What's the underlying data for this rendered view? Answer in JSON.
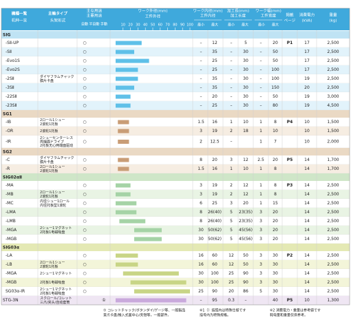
{
  "header": {
    "model": [
      "機種一覧",
      "机种一览"
    ],
    "spindle": [
      "主軸タイプ",
      "头架形式"
    ],
    "use": {
      "title": [
        "主な用途",
        "主要用途"
      ],
      "cols": [
        "自動",
        "半自動",
        "手動"
      ]
    },
    "outer": {
      "title": "ワーク外径(mm)",
      "sub": "工件外径",
      "xlim": [
        0,
        100
      ],
      "xticks": [
        10,
        20,
        30,
        40,
        50,
        60,
        70,
        80,
        90,
        100
      ]
    },
    "inner": {
      "title": [
        "ワーク内径(mm)",
        "工件内径"
      ],
      "min": "最小",
      "max": "最大"
    },
    "length": {
      "title": [
        "加工長(mm)",
        "加工长度"
      ],
      "min": "最小",
      "max": "最大"
    },
    "width": {
      "title": [
        "ワーク幅(mm)",
        "工件宽度"
      ],
      "min": "最小",
      "max": "最大"
    },
    "page": [
      "掲載",
      "ページ"
    ],
    "power": [
      "消費電力",
      "(kVA)"
    ],
    "weight": [
      "重量",
      "(kg)"
    ]
  },
  "sections": [
    {
      "name": "SIG",
      "head_color": "#bfe3f4",
      "row_color": "#e2f3fb",
      "bar_color": "#5fc0e8",
      "rows": [
        {
          "model": "-SⅡ-UP",
          "use": [
            "○",
            null,
            null
          ],
          "outer": [
            0,
            35
          ],
          "cells": [
            "–",
            "12",
            "–",
            "5",
            "–",
            "20"
          ],
          "page": "P1",
          "power": "17",
          "weight": "2,500"
        },
        {
          "model": "-SⅡ",
          "use": [
            "○",
            null,
            null
          ],
          "outer": [
            0,
            25
          ],
          "cells": [
            "–",
            "35",
            "–",
            "30",
            "–",
            "50"
          ],
          "power": "17",
          "weight": "2,500"
        },
        {
          "model": "-Evo1S",
          "use": [
            "○",
            null,
            null
          ],
          "outer": [
            0,
            45
          ],
          "cells": [
            "–",
            "25",
            "–",
            "30",
            "–",
            "50"
          ],
          "power": "17",
          "weight": "2,500"
        },
        {
          "model": "-Evo2S",
          "use": [
            "○",
            null,
            null
          ],
          "outer": [
            0,
            30
          ],
          "cells": [
            "–",
            "25",
            "–",
            "30",
            "–",
            "100"
          ],
          "power": "17",
          "weight": "2,500"
        },
        {
          "model": "-2SⅡ",
          "spindle": [
            "ダイヤフラムチャック",
            "膜片卡盘"
          ],
          "use": [
            "○",
            null,
            null
          ],
          "outer": [
            0,
            30
          ],
          "cells": [
            "–",
            "35",
            "–",
            "30",
            "–",
            "100"
          ],
          "power": "19",
          "weight": "2,500"
        },
        {
          "model": "-3SⅡ",
          "use": [
            "○",
            null,
            null
          ],
          "outer": [
            0,
            25
          ],
          "cells": [
            "–",
            "35",
            "–",
            "30",
            "–",
            "150"
          ],
          "power": "20",
          "weight": "2,500"
        },
        {
          "model": "-22SⅡ",
          "use": [
            "○",
            null,
            null
          ],
          "outer": [
            0,
            20
          ],
          "cells": [
            "–",
            "20",
            "–",
            "30",
            "–",
            "50"
          ],
          "power": "19",
          "weight": "3,000"
        },
        {
          "model": "-23SⅡ",
          "use": [
            "○",
            null,
            null
          ],
          "outer": [
            0,
            20
          ],
          "cells": [
            "–",
            "25",
            "–",
            "30",
            "–",
            "80"
          ],
          "power": "19",
          "weight": "4,500"
        }
      ]
    },
    {
      "name": "SG1",
      "head_color": "#ead9c4",
      "row_color": "#f6ede2",
      "bar_color": "#c99d76",
      "rows": [
        {
          "model": "-IB",
          "spindle": [
            "2ロール1シュー",
            "2滚轮1托板"
          ],
          "use": [
            "○",
            null,
            null
          ],
          "outer": [
            3,
            18
          ],
          "cells": [
            "1.5",
            "16",
            "1",
            "10",
            "1",
            "8"
          ],
          "page": "P4",
          "power": "10",
          "weight": "1,500"
        },
        {
          "model": "-OR",
          "spindle": [
            "2滚轮1托板"
          ],
          "use": [
            "○",
            null,
            null
          ],
          "outer": [
            3,
            18
          ],
          "cells": [
            "3",
            "19",
            "2",
            "18",
            "1",
            "10"
          ],
          "power": "10",
          "weight": "1,500"
        },
        {
          "model": "-IR",
          "spindle": [
            "2シューセンターレス",
            "両端面ドライブ",
            "2托板无心两端面驱动"
          ],
          "use": [
            "○",
            null,
            null
          ],
          "outer": [
            3,
            18
          ],
          "cells": [
            "2",
            "12.5",
            "–",
            null,
            "1",
            "7"
          ],
          "power": "10",
          "weight": "2,000"
        }
      ]
    },
    {
      "name": "SG2",
      "head_color": "#ead9c4",
      "row_color": "#f6ede2",
      "bar_color": "#c99d76",
      "rows": [
        {
          "model": "-C",
          "spindle": [
            "ダイヤフラムチャック",
            "膜片卡盘"
          ],
          "use": [
            "○",
            null,
            null
          ],
          "outer": [
            3,
            18
          ],
          "cells": [
            "8",
            "20",
            "3",
            "12",
            "2.5",
            "20"
          ],
          "page": "P5",
          "power": "14",
          "weight": "1,700"
        },
        {
          "model": "-R",
          "spindle": [
            "2ロール1シュー",
            "2滚轮1托板"
          ],
          "use": [
            "○",
            null,
            null
          ],
          "outer": [
            3,
            18
          ],
          "cells": [
            "1.5",
            "16",
            "1",
            "10",
            "1",
            "8"
          ],
          "power": "14",
          "weight": "1,700"
        }
      ]
    },
    {
      "name": "SIG02αⅡ",
      "head_color": "#cfe6c8",
      "row_color": "#e9f4e4",
      "bar_color": "#a5d3a6",
      "rows": [
        {
          "model": "-MA",
          "use": [
            "○",
            null,
            null
          ],
          "outer": [
            0,
            20
          ],
          "cells": [
            "3",
            "19",
            "2",
            "12",
            "1",
            "8"
          ],
          "page": "P3",
          "power": "14",
          "weight": "2,500"
        },
        {
          "model": "-MB",
          "spindle": [
            "2ロール1シュー",
            "2滚轮1托板"
          ],
          "use": [
            "○",
            null,
            null
          ],
          "outer": [
            0,
            20
          ],
          "cells": [
            "3",
            "19",
            "2",
            "12",
            "1",
            "8"
          ],
          "power": "14",
          "weight": "2,500"
        },
        {
          "model": "-MC",
          "spindle": [
            "内径シュー1ロール",
            "内径托板型1滚轮"
          ],
          "use": [
            "○",
            null,
            null
          ],
          "outer": [
            0,
            28
          ],
          "cells": [
            "6",
            "25",
            "3",
            "20",
            "1",
            "15"
          ],
          "power": "14",
          "weight": "2,500"
        },
        {
          "model": "-LMA",
          "use": [
            "○",
            null,
            null
          ],
          "outer": [
            0,
            28
          ],
          "cells": [
            "8",
            "26(40)",
            "5",
            "23(35)",
            "3",
            "20"
          ],
          "power": "14",
          "weight": "2,500"
        },
        {
          "model": "-LMB",
          "use": [
            "○",
            null,
            null
          ],
          "outer": [
            5,
            40
          ],
          "cells": [
            "8",
            "26(40)",
            "5",
            "23(35)",
            "3",
            "20"
          ],
          "power": "14",
          "weight": "2,500"
        },
        {
          "model": "-MGA",
          "spindle": [
            "2シュー1マグネット",
            "2托板1电磁吸盘"
          ],
          "use": [
            "○",
            null,
            null
          ],
          "outer": [
            25,
            62
          ],
          "cells": [
            "30",
            "50(62)",
            "5",
            "45(56)",
            "3",
            "20"
          ],
          "power": "14",
          "weight": "2,500"
        },
        {
          "model": "-MGB",
          "use": [
            "○",
            null,
            null
          ],
          "outer": [
            25,
            62
          ],
          "cells": [
            "30",
            "50(62)",
            "5",
            "45(56)",
            "3",
            "20"
          ],
          "power": "14",
          "weight": "2,500"
        }
      ]
    },
    {
      "name": "SIG03α",
      "head_color": "#e4e9b4",
      "row_color": "#f3f5d9",
      "bar_color": "#c8d586",
      "rows": [
        {
          "model": "-LA",
          "use": [
            "○",
            null,
            null
          ],
          "outer": [
            0,
            30
          ],
          "cells": [
            "16",
            "60",
            "12",
            "50",
            "3",
            "30"
          ],
          "page": "P2",
          "power": "14",
          "weight": "2,500"
        },
        {
          "model": "-LB",
          "spindle": [
            "2ロール1シュー",
            "2滚轮1托板"
          ],
          "use": [
            "○",
            null,
            null
          ],
          "outer": [
            0,
            30
          ],
          "cells": [
            "16",
            "60",
            "12",
            "50",
            "3",
            "30"
          ],
          "power": "14",
          "weight": "2,500"
        },
        {
          "model": "-MGA",
          "spindle": [
            "2シュー1マグネット"
          ],
          "use": [
            "○",
            null,
            null
          ],
          "outer": [
            10,
            85
          ],
          "cells": [
            "30",
            "100",
            "25",
            "90",
            "3",
            "30"
          ],
          "power": "14",
          "weight": "2,500"
        },
        {
          "model": "-MGB",
          "spindle": [
            "2托板1电磁吸盘"
          ],
          "use": [
            "○",
            null,
            null
          ],
          "outer": [
            20,
            95
          ],
          "cells": [
            "30",
            "100",
            "25",
            "90",
            "3",
            "30"
          ],
          "power": "14",
          "weight": "2,500"
        },
        {
          "model": "SG03α-IR",
          "spindle": [
            "2シュー1マグネット",
            "2托板1电磁吸盘"
          ],
          "use": [
            "○",
            null,
            null
          ],
          "outer": [
            25,
            100
          ],
          "cells": [
            "25",
            "90",
            "20",
            "86",
            "5",
            "30"
          ],
          "power": "14",
          "weight": "2,500"
        }
      ]
    },
    {
      "head_color": "#e3d6ea",
      "row_color": "#efe6f3",
      "bar_color": "#c9a9dc",
      "rows": [
        {
          "model": "STG-3N",
          "spindle": [
            "スクロール/コレット",
            "三爪/夹头/自动套筒"
          ],
          "use": [
            null,
            null,
            "①"
          ],
          "outer": [
            0,
            95
          ],
          "cells": [
            "–",
            "95",
            "0.3",
            "–",
            null,
            "40"
          ],
          "page": "P5",
          "power": "10",
          "weight": "1,300"
        }
      ]
    }
  ],
  "notes": [
    [
      "① コレットチャック/ボタンダイ/ゲージ等、一般製品",
      "查爪卡盘/推入式面中心/夹钳等，一般部件。"
    ],
    [
      "※1（）括弧内は特殊仕様です",
      "括号内为特殊规格。"
    ],
    [
      "※2 消費電力・重量は参考値です",
      "耗电量和重量仅供参考。"
    ]
  ]
}
